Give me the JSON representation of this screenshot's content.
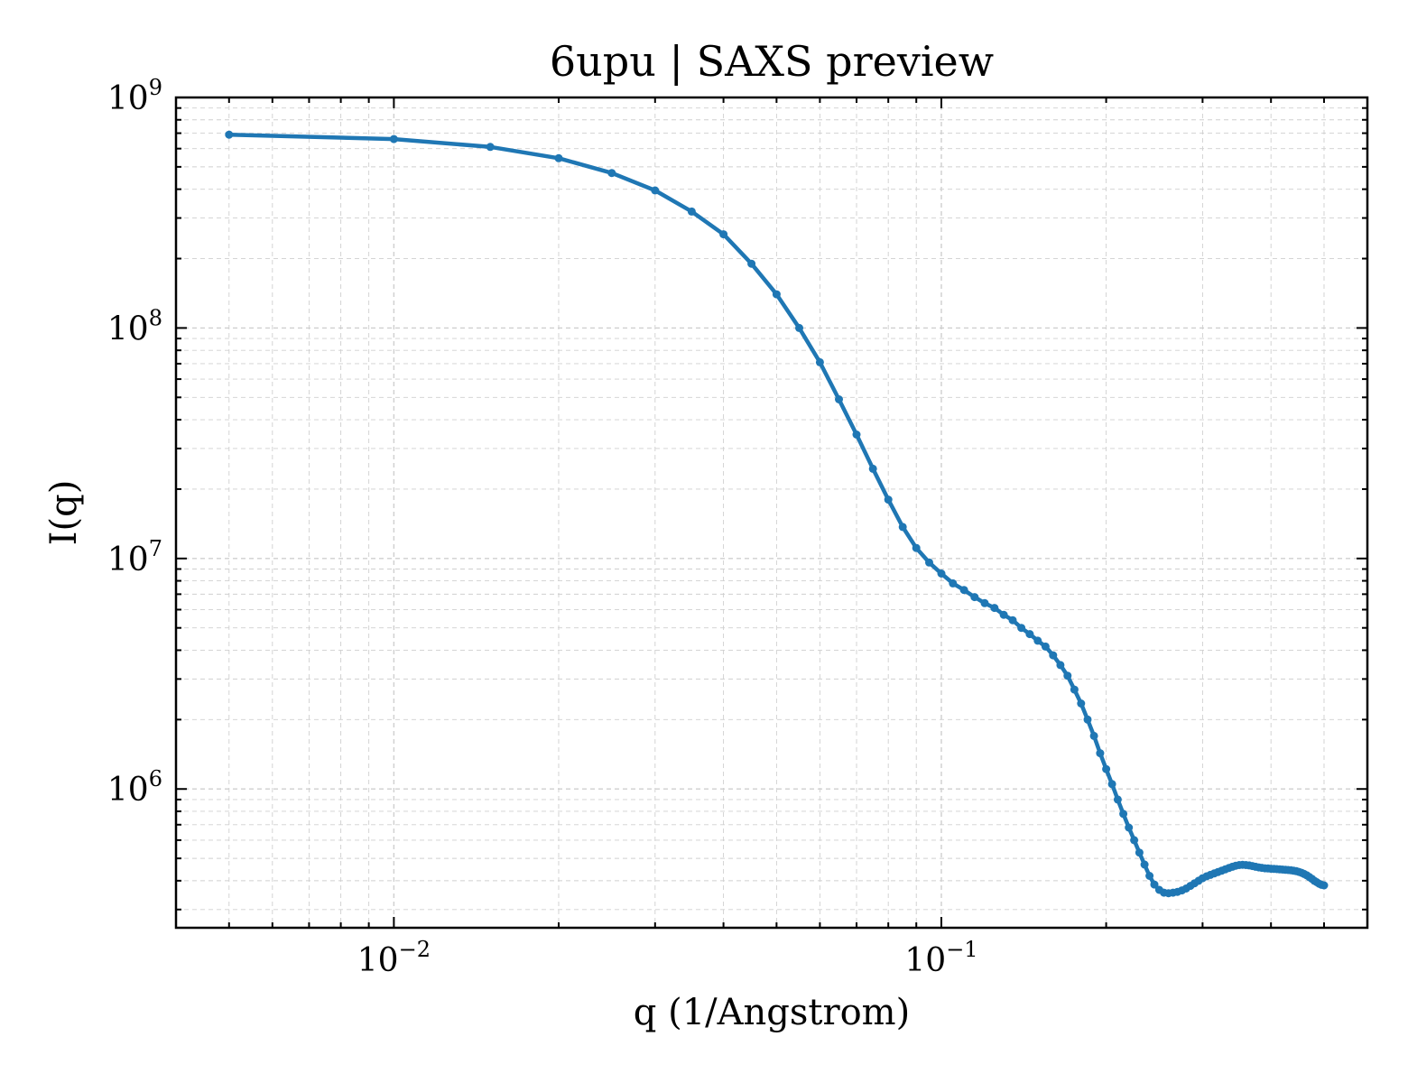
{
  "colors": {
    "series": "#1f77b4",
    "grid": "#cfcfcf",
    "axis": "#000000",
    "background": "#ffffff"
  },
  "chart_data": {
    "type": "line",
    "title": "6upu | SAXS preview",
    "xlabel": "q (1/Angstrom)",
    "ylabel": "I(q)",
    "xscale": "log",
    "yscale": "log",
    "xlim": [
      0.004,
      0.6
    ],
    "ylim": [
      250000,
      1000000000
    ],
    "grid": true,
    "grid_style": "dashed, major and minor",
    "markers": true,
    "x_ticks": [
      {
        "value": 0.01,
        "base": "10",
        "exp": "−2"
      },
      {
        "value": 0.1,
        "base": "10",
        "exp": "−1"
      }
    ],
    "y_ticks": [
      {
        "value": 1000000,
        "base": "10",
        "exp": "6"
      },
      {
        "value": 10000000,
        "base": "10",
        "exp": "7"
      },
      {
        "value": 100000000,
        "base": "10",
        "exp": "8"
      },
      {
        "value": 1000000000,
        "base": "10",
        "exp": "9"
      }
    ],
    "series": [
      {
        "color": "#1f77b4",
        "x": [
          0.005,
          0.01,
          0.015,
          0.02,
          0.025,
          0.03,
          0.035,
          0.04,
          0.045,
          0.05,
          0.055,
          0.06,
          0.065,
          0.07,
          0.075,
          0.08,
          0.085,
          0.09,
          0.095,
          0.1,
          0.105,
          0.11,
          0.115,
          0.12,
          0.125,
          0.13,
          0.135,
          0.14,
          0.145,
          0.15,
          0.155,
          0.16,
          0.165,
          0.17,
          0.175,
          0.18,
          0.185,
          0.19,
          0.195,
          0.2,
          0.205,
          0.21,
          0.215,
          0.22,
          0.225,
          0.23,
          0.235,
          0.24,
          0.245,
          0.25,
          0.255,
          0.26,
          0.265,
          0.27,
          0.275,
          0.28,
          0.285,
          0.29,
          0.295,
          0.3,
          0.305,
          0.31,
          0.315,
          0.32,
          0.325,
          0.33,
          0.335,
          0.34,
          0.345,
          0.35,
          0.355,
          0.36,
          0.365,
          0.37,
          0.375,
          0.38,
          0.385,
          0.39,
          0.395,
          0.4,
          0.405,
          0.41,
          0.415,
          0.42,
          0.425,
          0.43,
          0.435,
          0.44,
          0.445,
          0.45,
          0.455,
          0.46,
          0.465,
          0.47,
          0.475,
          0.48,
          0.485,
          0.49,
          0.495,
          0.5
        ],
        "y": [
          690000000,
          660000000,
          610000000,
          545000000,
          470000000,
          395000000,
          320000000,
          255000000,
          190000000,
          140000000,
          100000000,
          71000000,
          49000000,
          34500000,
          24500000,
          18000000,
          13700000,
          11100000,
          9600000,
          8600000,
          7800000,
          7300000,
          6800000,
          6400000,
          6100000,
          5700000,
          5400000,
          5000000,
          4700000,
          4400000,
          4150000,
          3800000,
          3450000,
          3100000,
          2700000,
          2350000,
          2000000,
          1700000,
          1430000,
          1220000,
          1050000,
          900000,
          780000,
          680000,
          600000,
          530000,
          470000,
          420000,
          385000,
          365000,
          355000,
          353000,
          355000,
          358000,
          363000,
          370000,
          380000,
          390000,
          400000,
          410000,
          418000,
          424000,
          430000,
          436000,
          442000,
          448000,
          454000,
          460000,
          465000,
          468000,
          469000,
          468000,
          466000,
          463000,
          460000,
          457000,
          455000,
          453000,
          452000,
          451000,
          450000,
          449000,
          448000,
          447000,
          446000,
          445000,
          444000,
          442000,
          440000,
          437000,
          433000,
          428000,
          422000,
          415000,
          408000,
          400000,
          394000,
          388000,
          384000,
          382000
        ]
      }
    ]
  }
}
